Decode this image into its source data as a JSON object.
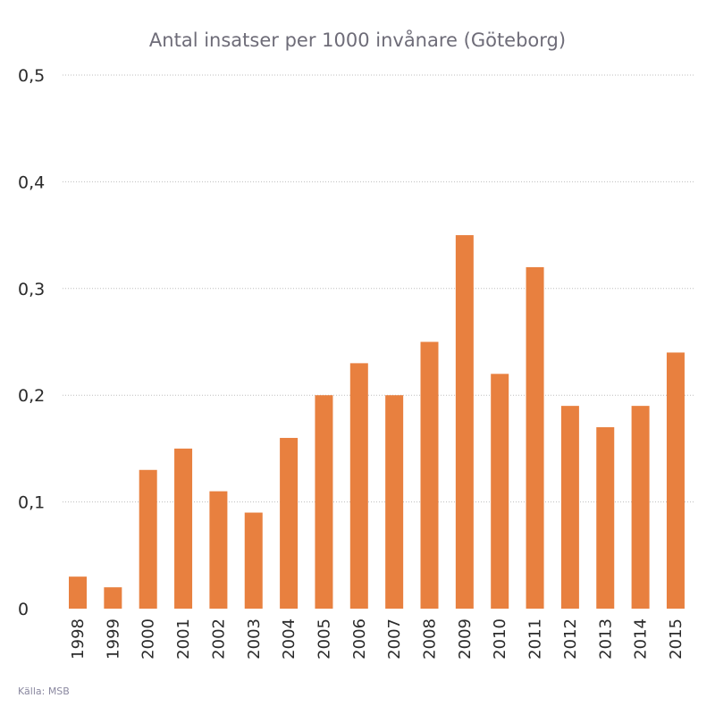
{
  "chart_data": {
    "type": "bar",
    "title": "Antal insatser per 1000 invånare (Göteborg)",
    "xlabel": "",
    "ylabel": "",
    "ylim": [
      0,
      0.5
    ],
    "yticks": [
      "0",
      "0,1",
      "0,2",
      "0,3",
      "0,4",
      "0,5"
    ],
    "categories": [
      "1998",
      "1999",
      "2000",
      "2001",
      "2002",
      "2003",
      "2004",
      "2005",
      "2006",
      "2007",
      "2008",
      "2009",
      "2010",
      "2011",
      "2012",
      "2013",
      "2014",
      "2015"
    ],
    "values": [
      0.03,
      0.02,
      0.13,
      0.15,
      0.11,
      0.09,
      0.16,
      0.2,
      0.23,
      0.2,
      0.25,
      0.35,
      0.22,
      0.32,
      0.19,
      0.17,
      0.19,
      0.24
    ],
    "bar_color": "#e8803f",
    "grid": true,
    "legend": "none"
  },
  "source": "Källa: MSB"
}
